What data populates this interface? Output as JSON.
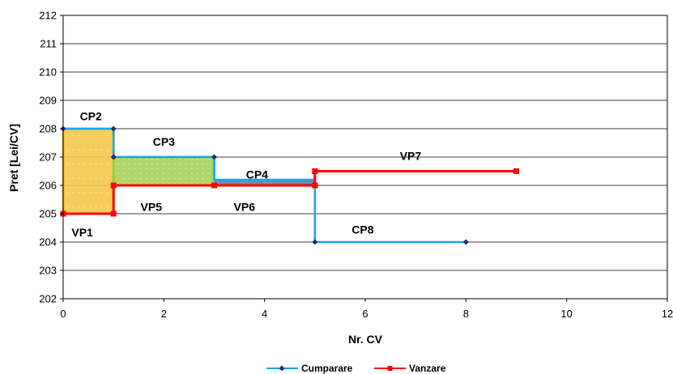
{
  "chart_data": {
    "type": "line",
    "title": "",
    "xlabel": "Nr. CV",
    "ylabel": "Pret [Lei/CV]",
    "xlim": [
      0,
      12
    ],
    "ylim": [
      202,
      212
    ],
    "x_ticks": [
      "0",
      "2",
      "4",
      "6",
      "8",
      "10",
      "12"
    ],
    "y_ticks": [
      "202",
      "203",
      "204",
      "205",
      "206",
      "207",
      "208",
      "209",
      "210",
      "211",
      "212"
    ],
    "grid": "horizontal",
    "legend_position": "bottom",
    "colors": {
      "Cumparare": "#1aa7e8",
      "Vanzare": "#ff0000",
      "marker_buy": "#1f2d6e",
      "box_cp2_fill": "#f5c84a",
      "box_cp2_border": "#f1b51c",
      "box_cp3_fill": "#a6d25a",
      "box_cp3_border": "#9bd23c",
      "band_cp4": "#6f8cb0"
    },
    "series": [
      {
        "name": "Cumparare",
        "points": [
          [
            0,
            208
          ],
          [
            1,
            208
          ],
          [
            1,
            207
          ],
          [
            3,
            207
          ],
          [
            3,
            206.2
          ],
          [
            5,
            206.2
          ],
          [
            5,
            204
          ],
          [
            8,
            204
          ]
        ],
        "markers": [
          [
            0,
            208
          ],
          [
            1,
            208
          ],
          [
            1,
            207
          ],
          [
            3,
            207
          ],
          [
            5,
            204
          ],
          [
            8,
            204
          ]
        ]
      },
      {
        "name": "Vanzare",
        "points": [
          [
            0,
            205
          ],
          [
            1,
            205
          ],
          [
            1,
            206
          ],
          [
            3,
            206
          ],
          [
            5,
            206
          ],
          [
            5,
            206.5
          ],
          [
            9,
            206.5
          ]
        ],
        "markers": [
          [
            0,
            205
          ],
          [
            1,
            205
          ],
          [
            1,
            206
          ],
          [
            3,
            206
          ],
          [
            5,
            206
          ],
          [
            5,
            206.5
          ],
          [
            9,
            206.5
          ]
        ]
      }
    ],
    "regions": [
      {
        "x": [
          0,
          1
        ],
        "y": [
          205,
          208
        ],
        "style": "cp2"
      },
      {
        "x": [
          1,
          3
        ],
        "y": [
          206,
          207
        ],
        "style": "cp3"
      },
      {
        "x": [
          3,
          5
        ],
        "y": [
          206,
          206.2
        ],
        "style": "cp4"
      }
    ],
    "annotations": [
      {
        "text": "CP2",
        "x": 0.55,
        "y": 208.45,
        "color": "#000000"
      },
      {
        "text": "CP3",
        "x": 2.0,
        "y": 207.55,
        "color": "#000000"
      },
      {
        "text": "CP4",
        "x": 3.85,
        "y": 206.38,
        "color": "#000000"
      },
      {
        "text": "VP7",
        "x": 6.9,
        "y": 207.05,
        "color": "#000000"
      },
      {
        "text": "VP5",
        "x": 1.75,
        "y": 205.25,
        "color": "#000000"
      },
      {
        "text": "VP6",
        "x": 3.6,
        "y": 205.25,
        "color": "#000000"
      },
      {
        "text": "CP8",
        "x": 5.95,
        "y": 204.45,
        "color": "#000000"
      },
      {
        "text": "VP1",
        "x": 0.38,
        "y": 204.35,
        "color": "#e8262a"
      }
    ]
  }
}
